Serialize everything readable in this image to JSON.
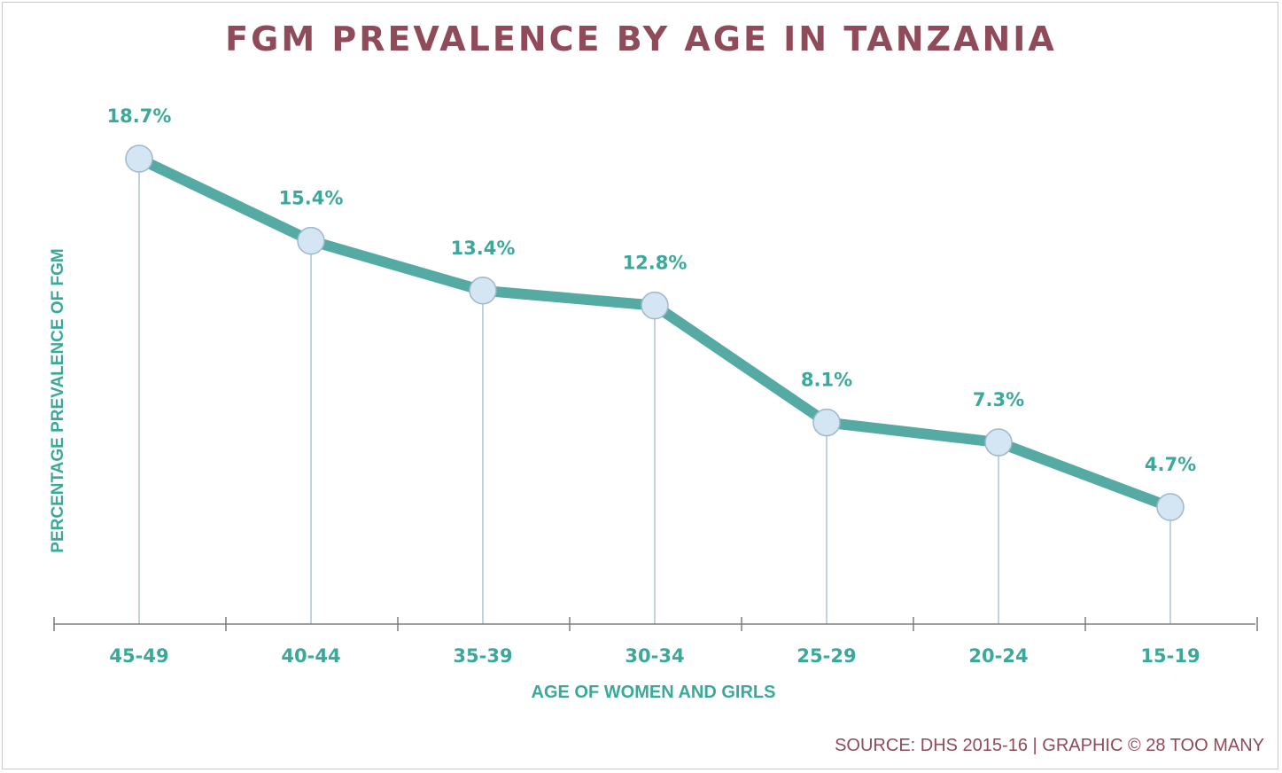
{
  "chart_data": {
    "type": "line",
    "title": "FGM PREVALENCE BY AGE IN TANZANIA",
    "xlabel": "AGE OF WOMEN AND GIRLS",
    "ylabel": "PERCENTAGE PREVALENCE OF FGM",
    "categories": [
      "45-49",
      "40-44",
      "35-39",
      "30-34",
      "25-29",
      "20-24",
      "15-19"
    ],
    "values": [
      18.7,
      15.4,
      13.4,
      12.8,
      8.1,
      7.3,
      4.7
    ],
    "data_labels": [
      "18.7%",
      "15.4%",
      "13.4%",
      "12.8%",
      "8.1%",
      "7.3%",
      "4.7%"
    ],
    "ylim": [
      0,
      18.7
    ],
    "grid": false,
    "line_color": "#55aaa3",
    "marker_color": "#d4e5f4",
    "text_color": "#3aa99a"
  },
  "source": "SOURCE: DHS 2015-16 | GRAPHIC © 28 TOO MANY",
  "colors": {
    "title": "#8f4b5a",
    "accent": "#3aa99a",
    "drop_line": "#a9c3d6",
    "axis": "#7d7d7d"
  }
}
